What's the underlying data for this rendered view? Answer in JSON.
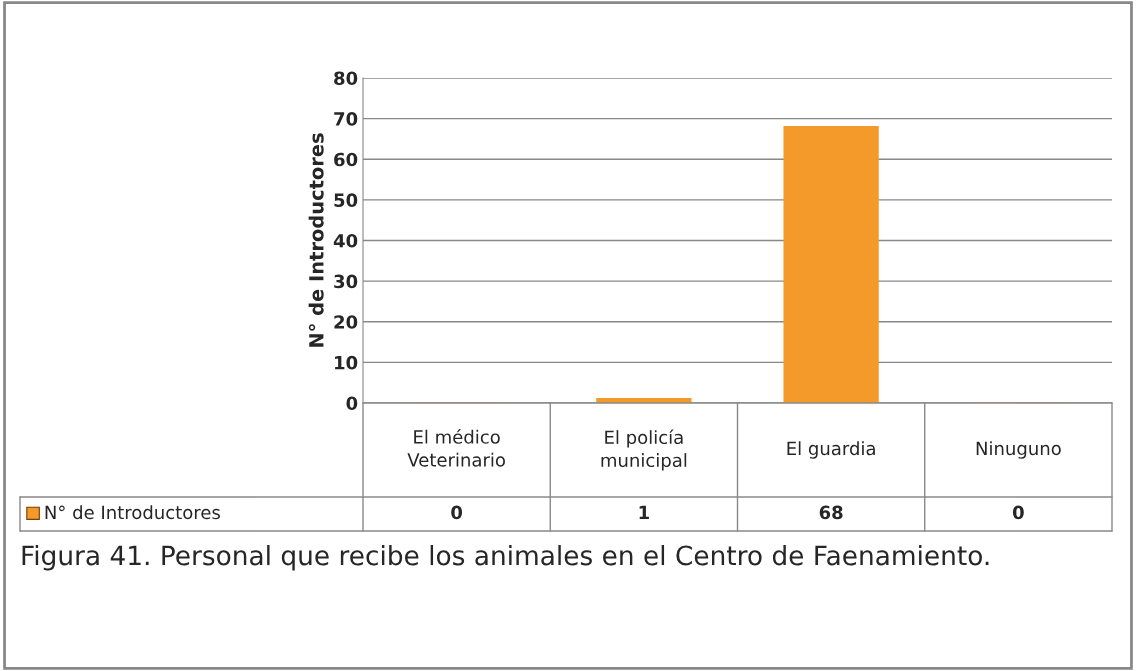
{
  "chart_data": {
    "type": "bar",
    "ylabel": "N° de Introductores",
    "categories": [
      "El médico\nVeterinario",
      "El policía\nmunicipal",
      "El guardia",
      "Ninuguno"
    ],
    "series": [
      {
        "name": "N° de Introductores",
        "color": "#f39a2b",
        "values": [
          0,
          1,
          68,
          0
        ]
      }
    ],
    "ylim": [
      0,
      80
    ],
    "yticks": [
      0,
      10,
      20,
      30,
      40,
      50,
      60,
      70,
      80
    ],
    "grid": "y",
    "data_labels": true,
    "legend": "bottom left",
    "annotations": [
      "Figura 41. Personal que recibe los animales en el Centro de Faenamiento."
    ]
  }
}
